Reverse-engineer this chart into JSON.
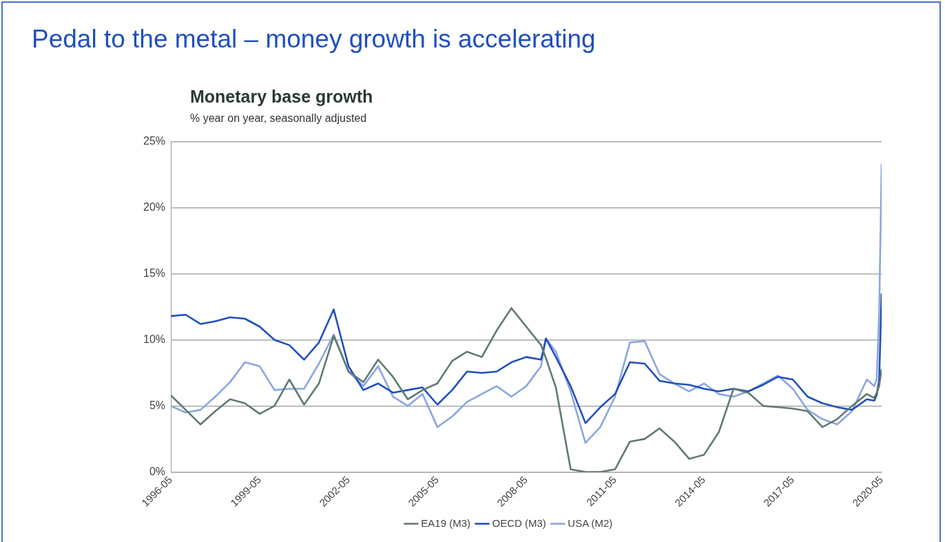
{
  "chart_data": {
    "type": "line",
    "title": "Pedal to the metal – money growth is accelerating",
    "subtitle": "Monetary base growth",
    "ylabel": "% year on year, seasonally adjusted",
    "x": [
      "1996-05",
      "1996-11",
      "1997-05",
      "1997-11",
      "1998-05",
      "1998-11",
      "1999-05",
      "1999-11",
      "2000-05",
      "2000-11",
      "2001-05",
      "2001-11",
      "2002-05",
      "2002-11",
      "2003-05",
      "2003-11",
      "2004-05",
      "2004-11",
      "2005-05",
      "2005-11",
      "2006-05",
      "2006-11",
      "2007-05",
      "2007-11",
      "2008-05",
      "2008-11",
      "2009-01",
      "2009-05",
      "2009-11",
      "2010-05",
      "2010-11",
      "2011-05",
      "2011-11",
      "2012-05",
      "2012-11",
      "2013-05",
      "2013-11",
      "2014-05",
      "2014-11",
      "2015-05",
      "2015-11",
      "2016-05",
      "2016-11",
      "2017-05",
      "2017-11",
      "2018-05",
      "2018-11",
      "2019-05",
      "2019-11",
      "2020-02",
      "2020-03",
      "2020-04",
      "2020-05"
    ],
    "series": [
      {
        "name": "EA19 (M3)",
        "color": "#5f7a6e",
        "values": [
          5.8,
          4.7,
          3.6,
          4.6,
          5.5,
          5.2,
          4.4,
          5.0,
          7.0,
          5.1,
          6.7,
          10.3,
          7.6,
          6.8,
          8.5,
          7.2,
          5.5,
          6.2,
          6.7,
          8.4,
          9.1,
          8.7,
          10.7,
          12.4,
          11.0,
          9.6,
          8.6,
          6.4,
          0.2,
          0,
          0,
          0.2,
          2.3,
          2.5,
          3.3,
          2.3,
          1.0,
          1.3,
          3.0,
          6.3,
          6.0,
          5.0,
          4.9,
          4.8,
          4.6,
          3.4,
          4.0,
          5.0,
          5.9,
          5.6,
          6.0,
          6.5,
          7.8
        ]
      },
      {
        "name": "OECD (M3)",
        "color": "#1f4fbf",
        "values": [
          11.8,
          11.9,
          11.2,
          11.4,
          11.7,
          11.6,
          11.0,
          10.0,
          9.6,
          8.5,
          9.8,
          12.3,
          8.0,
          6.2,
          6.7,
          6.0,
          6.2,
          6.4,
          5.1,
          6.2,
          7.6,
          7.5,
          7.6,
          8.3,
          8.7,
          8.5,
          10.1,
          8.7,
          6.5,
          3.7,
          4.9,
          5.9,
          8.3,
          8.2,
          6.9,
          6.7,
          6.6,
          6.3,
          6.1,
          6.3,
          6.1,
          6.6,
          7.2,
          7.0,
          5.7,
          5.2,
          4.9,
          4.7,
          5.5,
          5.4,
          5.8,
          7.0,
          13.5
        ]
      },
      {
        "name": "USA (M2)",
        "color": "#8aa6e0",
        "values": [
          5.0,
          4.5,
          4.7,
          5.7,
          6.8,
          8.3,
          8.0,
          6.2,
          6.3,
          6.3,
          8.2,
          10.4,
          7.6,
          6.5,
          8.0,
          5.7,
          5.0,
          5.9,
          3.4,
          4.2,
          5.3,
          5.9,
          6.5,
          5.7,
          6.5,
          8.0,
          10.1,
          9.1,
          6.1,
          2.2,
          3.4,
          5.7,
          9.8,
          9.9,
          7.4,
          6.7,
          6.1,
          6.7,
          5.9,
          5.7,
          6.1,
          6.7,
          7.3,
          6.3,
          4.7,
          4.0,
          3.6,
          4.6,
          7.0,
          6.5,
          7.0,
          12.0,
          23.3
        ]
      }
    ],
    "xlim": [
      "1996-05",
      "2020-05"
    ],
    "xticks": [
      "1996-05",
      "1999-05",
      "2002-05",
      "2005-05",
      "2008-05",
      "2011-05",
      "2014-05",
      "2017-05",
      "2020-05"
    ],
    "ylim": [
      0,
      25
    ],
    "yticks": [
      {
        "value": 0,
        "label": "0%"
      },
      {
        "value": 5,
        "label": "5%"
      },
      {
        "value": 10,
        "label": "10%"
      },
      {
        "value": 15,
        "label": "15%"
      },
      {
        "value": 20,
        "label": "20%"
      },
      {
        "value": 25,
        "label": "25%"
      }
    ],
    "grid": "y",
    "legend": "bottom",
    "marker": "none",
    "line_style": "solid"
  }
}
